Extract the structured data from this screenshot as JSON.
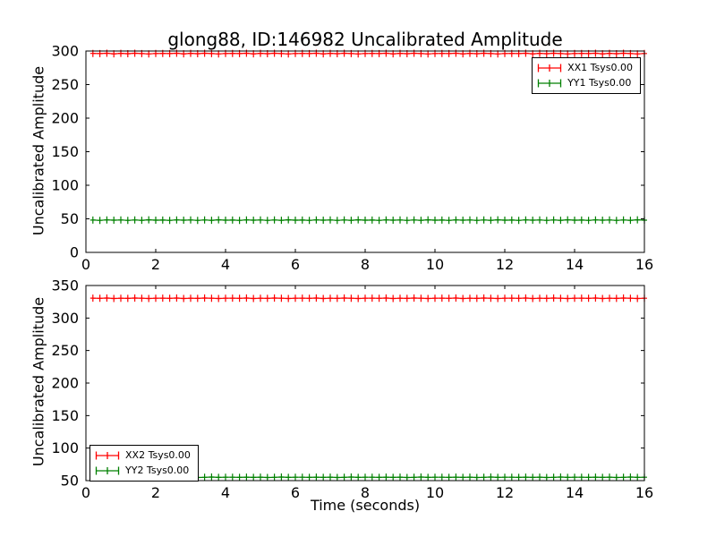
{
  "figure": {
    "title": "glong88, ID:146982 Uncalibrated Amplitude",
    "background": "#ffffff",
    "frame_color": "#000000"
  },
  "chart_data": [
    {
      "type": "line",
      "subplot": "top",
      "xlabel": "",
      "ylabel": "Uncalibrated Amplitude",
      "xlim": [
        0,
        16
      ],
      "ylim": [
        0,
        300
      ],
      "xticks": [
        0,
        2,
        4,
        6,
        8,
        10,
        12,
        14,
        16
      ],
      "yticks": [
        0,
        50,
        100,
        150,
        200,
        250,
        300
      ],
      "grid": false,
      "legend": {
        "position": "upper right",
        "entries": [
          "XX1 Tsys0.00",
          "YY1 Tsys0.00"
        ]
      },
      "x": [
        0.2,
        0.4,
        0.6,
        0.8,
        1.0,
        1.2,
        1.4,
        1.6,
        1.8,
        2.0,
        2.2,
        2.4,
        2.6,
        2.8,
        3.0,
        3.2,
        3.4,
        3.6,
        3.8,
        4.0,
        4.2,
        4.4,
        4.6,
        4.8,
        5.0,
        5.2,
        5.4,
        5.6,
        5.8,
        6.0,
        6.2,
        6.4,
        6.6,
        6.8,
        7.0,
        7.2,
        7.4,
        7.6,
        7.8,
        8.0,
        8.2,
        8.4,
        8.6,
        8.8,
        9.0,
        9.2,
        9.4,
        9.6,
        9.8,
        10.0,
        10.2,
        10.4,
        10.6,
        10.8,
        11.0,
        11.2,
        11.4,
        11.6,
        11.8,
        12.0,
        12.2,
        12.4,
        12.6,
        12.8,
        13.0,
        13.2,
        13.4,
        13.6,
        13.8,
        14.0,
        14.2,
        14.4,
        14.6,
        14.8,
        15.0,
        15.2,
        15.4,
        15.6,
        15.8,
        16.0
      ],
      "series": [
        {
          "name": "XX1 Tsys0.00",
          "color": "#ff0000",
          "marker": "+",
          "values": [
            296.4,
            296.1,
            296.7,
            295.9,
            296.5,
            296.0,
            296.6,
            296.2,
            295.8,
            296.3,
            296.4,
            296.1,
            296.7,
            295.9,
            296.5,
            296.0,
            296.6,
            296.2,
            295.8,
            296.3,
            296.4,
            296.1,
            296.7,
            295.9,
            296.5,
            296.0,
            296.6,
            296.2,
            295.8,
            296.3,
            296.4,
            296.1,
            296.7,
            295.9,
            296.5,
            296.0,
            296.6,
            296.2,
            295.8,
            296.3,
            296.4,
            296.1,
            296.7,
            295.9,
            296.5,
            296.0,
            296.6,
            296.2,
            295.8,
            296.3,
            296.4,
            296.1,
            296.7,
            295.9,
            296.5,
            296.0,
            296.6,
            296.2,
            295.8,
            296.3,
            296.4,
            296.1,
            296.7,
            295.9,
            296.5,
            296.0,
            296.6,
            296.2,
            295.8,
            296.3,
            296.4,
            296.1,
            296.7,
            295.9,
            296.5,
            296.0,
            296.6,
            296.2,
            295.8,
            296.3
          ]
        },
        {
          "name": "YY1 Tsys0.00",
          "color": "#008000",
          "marker": "+",
          "values": [
            48.1,
            47.8,
            48.4,
            48.0,
            48.2,
            47.7,
            48.3,
            47.9,
            48.5,
            48.0,
            48.1,
            47.8,
            48.4,
            48.0,
            48.2,
            47.7,
            48.3,
            47.9,
            48.5,
            48.0,
            48.1,
            47.8,
            48.4,
            48.0,
            48.2,
            47.7,
            48.3,
            47.9,
            48.5,
            48.0,
            48.1,
            47.8,
            48.4,
            48.0,
            48.2,
            47.7,
            48.3,
            47.9,
            48.5,
            48.0,
            48.1,
            47.8,
            48.4,
            48.0,
            48.2,
            47.7,
            48.3,
            47.9,
            48.5,
            48.0,
            48.1,
            47.8,
            48.4,
            48.0,
            48.2,
            47.7,
            48.3,
            47.9,
            48.5,
            48.0,
            48.1,
            47.8,
            48.4,
            48.0,
            48.2,
            47.7,
            48.3,
            47.9,
            48.5,
            48.0,
            48.1,
            47.8,
            48.4,
            48.0,
            48.2,
            47.7,
            48.3,
            47.9,
            48.5,
            48.0
          ]
        }
      ]
    },
    {
      "type": "line",
      "subplot": "bottom",
      "xlabel": "Time (seconds)",
      "ylabel": "Uncalibrated Amplitude",
      "xlim": [
        0,
        16
      ],
      "ylim": [
        50,
        350
      ],
      "xticks": [
        0,
        2,
        4,
        6,
        8,
        10,
        12,
        14,
        16
      ],
      "yticks": [
        50,
        100,
        150,
        200,
        250,
        300,
        350
      ],
      "grid": false,
      "legend": {
        "position": "lower left",
        "entries": [
          "XX2 Tsys0.00",
          "YY2 Tsys0.00"
        ]
      },
      "x": [
        0.2,
        0.4,
        0.6,
        0.8,
        1.0,
        1.2,
        1.4,
        1.6,
        1.8,
        2.0,
        2.2,
        2.4,
        2.6,
        2.8,
        3.0,
        3.2,
        3.4,
        3.6,
        3.8,
        4.0,
        4.2,
        4.4,
        4.6,
        4.8,
        5.0,
        5.2,
        5.4,
        5.6,
        5.8,
        6.0,
        6.2,
        6.4,
        6.6,
        6.8,
        7.0,
        7.2,
        7.4,
        7.6,
        7.8,
        8.0,
        8.2,
        8.4,
        8.6,
        8.8,
        9.0,
        9.2,
        9.4,
        9.6,
        9.8,
        10.0,
        10.2,
        10.4,
        10.6,
        10.8,
        11.0,
        11.2,
        11.4,
        11.6,
        11.8,
        12.0,
        12.2,
        12.4,
        12.6,
        12.8,
        13.0,
        13.2,
        13.4,
        13.6,
        13.8,
        14.0,
        14.2,
        14.4,
        14.6,
        14.8,
        15.0,
        15.2,
        15.4,
        15.6,
        15.8,
        16.0
      ],
      "series": [
        {
          "name": "XX2 Tsys0.00",
          "color": "#ff0000",
          "marker": "+",
          "values": [
            330.6,
            330.3,
            330.8,
            330.1,
            330.5,
            330.2,
            330.7,
            330.4,
            330.0,
            330.5,
            330.6,
            330.3,
            330.8,
            330.1,
            330.5,
            330.2,
            330.7,
            330.4,
            330.0,
            330.5,
            330.6,
            330.3,
            330.8,
            330.1,
            330.5,
            330.2,
            330.7,
            330.4,
            330.0,
            330.5,
            330.6,
            330.3,
            330.8,
            330.1,
            330.5,
            330.2,
            330.7,
            330.4,
            330.0,
            330.5,
            330.6,
            330.3,
            330.8,
            330.1,
            330.5,
            330.2,
            330.7,
            330.4,
            330.0,
            330.5,
            330.6,
            330.3,
            330.8,
            330.1,
            330.5,
            330.2,
            330.7,
            330.4,
            330.0,
            330.5,
            330.6,
            330.3,
            330.8,
            330.1,
            330.5,
            330.2,
            330.7,
            330.4,
            330.0,
            330.5,
            330.6,
            330.3,
            330.8,
            330.1,
            330.5,
            330.2,
            330.7,
            330.4,
            330.0,
            330.5
          ]
        },
        {
          "name": "YY2 Tsys0.00",
          "color": "#008000",
          "marker": "+",
          "values": [
            55.2,
            54.9,
            55.4,
            55.0,
            55.3,
            54.8,
            55.1,
            55.5,
            54.9,
            55.2,
            55.2,
            54.9,
            55.4,
            55.0,
            55.3,
            54.8,
            55.1,
            55.5,
            54.9,
            55.2,
            55.2,
            54.9,
            55.4,
            55.0,
            55.3,
            54.8,
            55.1,
            55.5,
            54.9,
            55.2,
            55.2,
            54.9,
            55.4,
            55.0,
            55.3,
            54.8,
            55.1,
            55.5,
            54.9,
            55.2,
            55.2,
            54.9,
            55.4,
            55.0,
            55.3,
            54.8,
            55.1,
            55.5,
            54.9,
            55.2,
            55.2,
            54.9,
            55.4,
            55.0,
            55.3,
            54.8,
            55.1,
            55.5,
            54.9,
            55.2,
            55.2,
            54.9,
            55.4,
            55.0,
            55.3,
            54.8,
            55.1,
            55.5,
            54.9,
            55.2,
            55.2,
            54.9,
            55.4,
            55.0,
            55.3,
            54.8,
            55.1,
            55.5,
            54.9,
            55.2
          ]
        }
      ]
    }
  ]
}
